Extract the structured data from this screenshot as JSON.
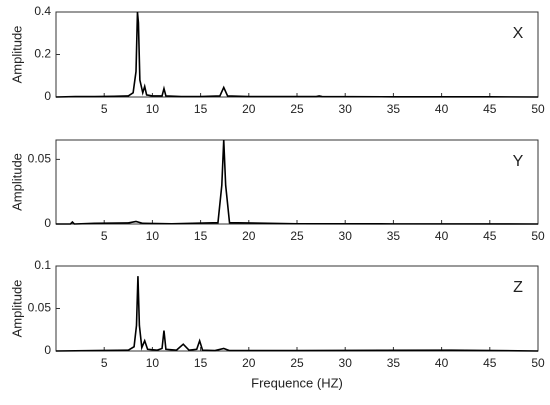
{
  "chart_data": [
    {
      "type": "line",
      "annotation": "X",
      "ylabel": "Amplitude",
      "color": "#000000",
      "x": [
        0,
        2,
        4,
        6,
        7.5,
        8.0,
        8.3,
        8.45,
        8.55,
        8.7,
        9.0,
        9.2,
        9.4,
        10,
        11.0,
        11.2,
        11.4,
        13,
        15,
        17.0,
        17.4,
        17.8,
        20,
        27.0,
        27.3,
        27.6,
        35,
        45,
        50
      ],
      "values": [
        0,
        0.002,
        0.002,
        0.003,
        0.005,
        0.02,
        0.12,
        0.4,
        0.35,
        0.08,
        0.02,
        0.05,
        0.01,
        0.005,
        0.005,
        0.04,
        0.005,
        0.002,
        0.002,
        0.005,
        0.045,
        0.005,
        0.002,
        0.002,
        0.005,
        0.002,
        0.001,
        0.001,
        0
      ],
      "xlim": [
        0,
        50
      ],
      "xticks": [
        5,
        10,
        15,
        20,
        25,
        30,
        35,
        40,
        45,
        50
      ],
      "ylim": [
        0,
        0.4
      ],
      "yticks": [
        0,
        0.2,
        0.4
      ]
    },
    {
      "type": "line",
      "annotation": "Y",
      "ylabel": "Amplitude",
      "color": "#000000",
      "x": [
        0,
        1.5,
        1.7,
        1.9,
        4,
        7.5,
        8.3,
        9,
        12,
        16.8,
        17.2,
        17.4,
        17.6,
        18,
        25,
        35,
        50
      ],
      "values": [
        0,
        0,
        0.0015,
        0,
        0.0005,
        0.0008,
        0.002,
        0.0005,
        0.0002,
        0.001,
        0.03,
        0.065,
        0.03,
        0.001,
        0.0002,
        0.0001,
        0
      ],
      "xlim": [
        0,
        50
      ],
      "xticks": [
        5,
        10,
        15,
        20,
        25,
        30,
        35,
        40,
        45,
        50
      ],
      "ylim": [
        0,
        0.065
      ],
      "yticks": [
        0,
        0.05
      ]
    },
    {
      "type": "line",
      "annotation": "Z",
      "ylabel": "Amplitude",
      "xlabel": "Frequence (HZ)",
      "color": "#000000",
      "x": [
        0,
        4,
        7.5,
        8.1,
        8.35,
        8.5,
        8.65,
        8.9,
        9.2,
        9.5,
        10.5,
        11.0,
        11.2,
        11.4,
        12.5,
        13.2,
        13.8,
        14.6,
        14.9,
        15.2,
        16.5,
        17.4,
        18,
        25,
        41,
        50
      ],
      "values": [
        0,
        0.0005,
        0.001,
        0.005,
        0.03,
        0.088,
        0.03,
        0.004,
        0.012,
        0.002,
        0.001,
        0.003,
        0.024,
        0.002,
        0.001,
        0.008,
        0.001,
        0.002,
        0.012,
        0.001,
        0.0005,
        0.003,
        0.0005,
        0.0005,
        0.001,
        0
      ],
      "xlim": [
        0,
        50
      ],
      "xticks": [
        5,
        10,
        15,
        20,
        25,
        30,
        35,
        40,
        45,
        50
      ],
      "ylim": [
        0,
        0.1
      ],
      "yticks": [
        0,
        0.05,
        0.1
      ]
    }
  ]
}
